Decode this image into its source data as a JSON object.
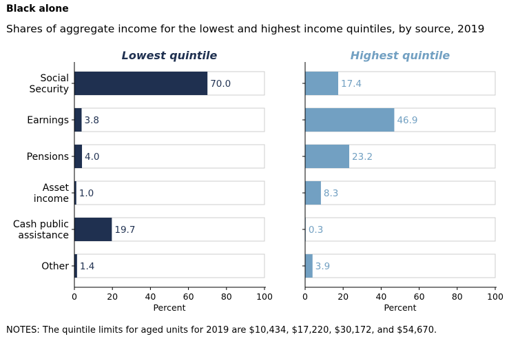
{
  "supertitle": "Black alone",
  "title": "Shares of aggregate income for the lowest and highest income quintiles, by source, 2019",
  "notes": "NOTES: The quintile limits for aged units for 2019 are $10,434, $17,220, $30,172, and $54,670.",
  "colors": {
    "lowest": "#1f3050",
    "highest": "#72a0c2",
    "frame": "#cccccc",
    "axis": "#000000"
  },
  "chart_data": [
    {
      "type": "bar",
      "orientation": "horizontal",
      "title": "Lowest quintile",
      "xlabel": "Percent",
      "xlim": [
        0,
        100
      ],
      "xticks": [
        0,
        20,
        40,
        60,
        80,
        100
      ],
      "categories": [
        "Social\nSecurity",
        "Earnings",
        "Pensions",
        "Asset\nincome",
        "Cash public\nassistance",
        "Other"
      ],
      "values": [
        70.0,
        3.8,
        4.0,
        1.0,
        19.7,
        1.4
      ],
      "value_labels": [
        "70.0",
        "3.8",
        "4.0",
        "1.0",
        "19.7",
        "1.4"
      ]
    },
    {
      "type": "bar",
      "orientation": "horizontal",
      "title": "Highest quintile",
      "xlabel": "Percent",
      "xlim": [
        0,
        100
      ],
      "xticks": [
        0,
        20,
        40,
        60,
        80,
        100
      ],
      "categories": [
        "Social\nSecurity",
        "Earnings",
        "Pensions",
        "Asset\nincome",
        "Cash public\nassistance",
        "Other"
      ],
      "values": [
        17.4,
        46.9,
        23.2,
        8.3,
        0.3,
        3.9
      ],
      "value_labels": [
        "17.4",
        "46.9",
        "23.2",
        "8.3",
        "0.3",
        "3.9"
      ]
    }
  ]
}
